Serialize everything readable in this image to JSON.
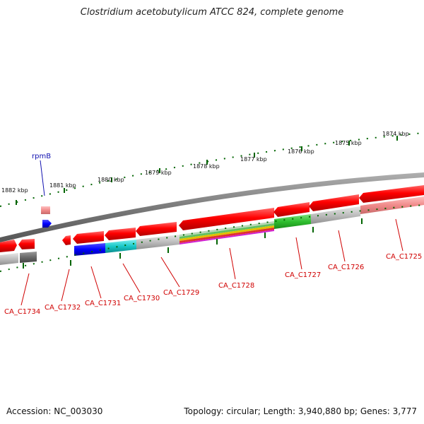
{
  "title": "Clostridium acetobutylicum ATCC 824, complete genome",
  "accession": "Accession: NC_003030",
  "summary": "Topology: circular; Length: 3,940,880 bp; Genes: 3,777",
  "colors": {
    "forward_gene": "#ff0000",
    "forward_gene_light": "#f49090",
    "backbone": "#808080",
    "tick": "#006400",
    "label": "#d00000",
    "rna": "#0000ff",
    "rna_label": "#1010b0"
  },
  "scale_labels": [
    "1882 kbp",
    "1881 kbp",
    "1880 kbp",
    "1879 kbp",
    "1878 kbp",
    "1877 kbp",
    "1876 kbp",
    "1875 kbp",
    "1874 kbp"
  ],
  "rna_gene": "rpmB",
  "gene_labels": [
    "CA_C1734",
    "CA_C1732",
    "CA_C1731",
    "CA_C1730",
    "CA_C1729",
    "CA_C1728",
    "CA_C1727",
    "CA_C1726",
    "CA_C1725"
  ]
}
